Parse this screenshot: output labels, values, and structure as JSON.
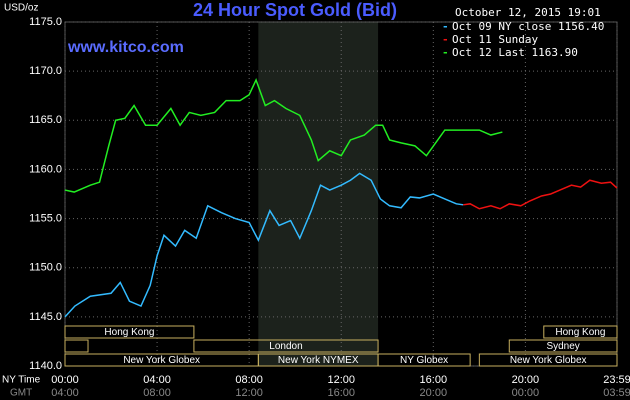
{
  "chart_data": {
    "type": "line",
    "title": "24 Hour Spot Gold (Bid)",
    "subtitle": "www.kitco.com",
    "timestamp": "October 12, 2015 19:01",
    "y_label": "USD/oz",
    "x_row_labels": [
      "NY Time",
      "GMT"
    ],
    "xlim": [
      0,
      23.98
    ],
    "xticks": [
      {
        "value": 0,
        "label": "00:00"
      },
      {
        "value": 4,
        "label": "04:00"
      },
      {
        "value": 8,
        "label": "08:00"
      },
      {
        "value": 12,
        "label": "12:00"
      },
      {
        "value": 16,
        "label": "16:00"
      },
      {
        "value": 20,
        "label": "20:00"
      },
      {
        "value": 23.98,
        "label": "23:59"
      }
    ],
    "gmt_labels": [
      "04:00",
      "08:00",
      "12:00",
      "16:00",
      "20:00",
      "00:00",
      "03:59"
    ],
    "ylim": [
      1140,
      1175
    ],
    "yticks": [
      {
        "value": 1140,
        "label": "1140.0"
      },
      {
        "value": 1145,
        "label": "1145.0"
      },
      {
        "value": 1150,
        "label": "1150.0"
      },
      {
        "value": 1155,
        "label": "1155.0"
      },
      {
        "value": 1160,
        "label": "1160.0"
      },
      {
        "value": 1165,
        "label": "1165.0"
      },
      {
        "value": 1170,
        "label": "1170.0"
      },
      {
        "value": 1175,
        "label": "1175.0"
      }
    ],
    "grid": true,
    "legend": "top-right",
    "sessions": [
      "Hong Kong",
      "Hong Kong",
      "London",
      "Sydney",
      "New York Globex",
      "New York NYMEX",
      "NY Globex",
      "New York Globex"
    ],
    "series": [
      {
        "name": "Oct 09 NY close 1156.40",
        "color": "#33bbff",
        "x": [
          0,
          0.43,
          1.1,
          2,
          2.4,
          2.8,
          3.3,
          3.7,
          4,
          4.3,
          4.8,
          5.2,
          5.7,
          6.2,
          6.8,
          7.4,
          8,
          8.4,
          8.9,
          9.3,
          9.8,
          10.2,
          10.7,
          11.1,
          11.5,
          12,
          12.4,
          12.8,
          13.3,
          13.7,
          14.1,
          14.6,
          15,
          15.4,
          16,
          16.5,
          17,
          17.3
        ],
        "values": [
          1145.0,
          1146.1,
          1147.1,
          1147.4,
          1148.5,
          1146.6,
          1146.1,
          1148.2,
          1151.2,
          1153.3,
          1152.2,
          1153.8,
          1153.0,
          1156.3,
          1155.6,
          1155.0,
          1154.6,
          1152.8,
          1155.8,
          1154.3,
          1154.8,
          1153.0,
          1155.8,
          1158.4,
          1157.9,
          1158.4,
          1158.9,
          1159.6,
          1158.9,
          1157.0,
          1156.3,
          1156.1,
          1157.2,
          1157.1,
          1157.5,
          1157.0,
          1156.5,
          1156.4
        ]
      },
      {
        "name": "Oct 11 Sunday",
        "color": "#ee1111",
        "x": [
          17.3,
          17.6,
          18,
          18.5,
          18.9,
          19.3,
          19.8,
          20.2,
          20.7,
          21.1,
          21.5,
          22,
          22.4,
          22.8,
          23.3,
          23.7,
          23.98
        ],
        "values": [
          1156.4,
          1156.5,
          1156.0,
          1156.3,
          1156.0,
          1156.5,
          1156.3,
          1156.8,
          1157.3,
          1157.5,
          1157.9,
          1158.4,
          1158.2,
          1158.9,
          1158.6,
          1158.7,
          1158.1
        ]
      },
      {
        "name": "Oct 12 Last 1163.90",
        "color": "#22ee22",
        "x": [
          0,
          0.4,
          1.1,
          1.5,
          1.9,
          2.2,
          2.6,
          3,
          3.5,
          4,
          4.6,
          5,
          5.4,
          5.9,
          6.5,
          7,
          7.6,
          8,
          8.3,
          8.7,
          9.1,
          9.6,
          10.2,
          10.7,
          11,
          11.5,
          12,
          12.4,
          13,
          13.5,
          13.8,
          14.1,
          14.6,
          15.2,
          15.7,
          16.1,
          16.5,
          17.2,
          18,
          18.5,
          19
        ],
        "values": [
          1157.9,
          1157.7,
          1158.4,
          1158.7,
          1162.4,
          1165.0,
          1165.2,
          1166.5,
          1164.5,
          1164.5,
          1166.2,
          1164.5,
          1165.8,
          1165.5,
          1165.8,
          1167.0,
          1167.0,
          1167.6,
          1169.1,
          1166.5,
          1167.0,
          1166.2,
          1165.5,
          1163.0,
          1160.9,
          1161.9,
          1161.4,
          1163.0,
          1163.5,
          1164.5,
          1164.5,
          1163.0,
          1162.7,
          1162.4,
          1161.4,
          1162.7,
          1164.0,
          1164.0,
          1164.0,
          1163.5,
          1163.8
        ]
      }
    ]
  }
}
